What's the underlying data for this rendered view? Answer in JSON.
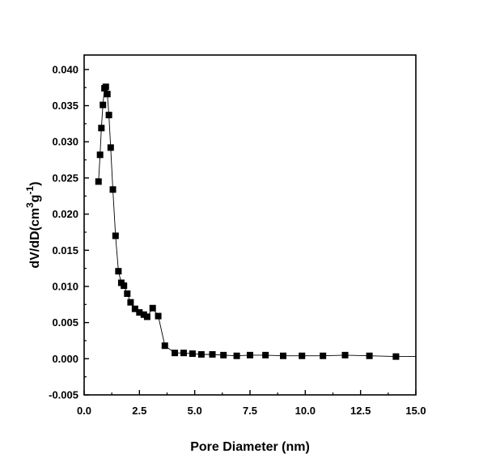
{
  "chart_data": {
    "type": "scatter",
    "title": "",
    "xlabel": "Pore Diameter (nm)",
    "ylabel": {
      "base": "dV/dD(cm",
      "sup1": "3",
      "mid": "g",
      "sup2": "-1",
      "end": ")"
    },
    "xlim": [
      0.0,
      15.0
    ],
    "ylim": [
      -0.005,
      0.042
    ],
    "x_ticks": [
      0.0,
      2.5,
      5.0,
      7.5,
      10.0,
      12.5,
      15.0
    ],
    "x_tick_labels": [
      "0.0",
      "2.5",
      "5.0",
      "7.5",
      "10.0",
      "12.5",
      "15.0"
    ],
    "y_ticks": [
      -0.005,
      0.0,
      0.005,
      0.01,
      0.015,
      0.02,
      0.025,
      0.03,
      0.035,
      0.04
    ],
    "y_tick_labels": [
      "-0.005",
      "0.000",
      "0.005",
      "0.010",
      "0.015",
      "0.020",
      "0.025",
      "0.030",
      "0.035",
      "0.040"
    ],
    "grid": false,
    "marker": "square",
    "line_connected": true,
    "series": [
      {
        "color": "#000000",
        "x": [
          0.65,
          0.72,
          0.78,
          0.85,
          0.92,
          0.98,
          1.05,
          1.12,
          1.2,
          1.3,
          1.42,
          1.55,
          1.68,
          1.8,
          1.95,
          2.1,
          2.3,
          2.5,
          2.7,
          2.85,
          3.1,
          3.35,
          3.65,
          4.1,
          4.5,
          4.9,
          5.3,
          5.8,
          6.3,
          6.9,
          7.5,
          8.2,
          9.0,
          9.85,
          10.8,
          11.8,
          12.9,
          14.1
        ],
        "y": [
          0.0245,
          0.0282,
          0.0319,
          0.0351,
          0.0374,
          0.0376,
          0.0366,
          0.0337,
          0.0292,
          0.0234,
          0.017,
          0.0121,
          0.0105,
          0.0101,
          0.009,
          0.0078,
          0.0069,
          0.0064,
          0.0061,
          0.0058,
          0.007,
          0.0059,
          0.0018,
          0.0008,
          0.0008,
          0.0007,
          0.0006,
          0.0006,
          0.0005,
          0.0004,
          0.0005,
          0.0005,
          0.0004,
          0.0004,
          0.0004,
          0.0005,
          0.0004,
          0.0003
        ]
      }
    ]
  }
}
